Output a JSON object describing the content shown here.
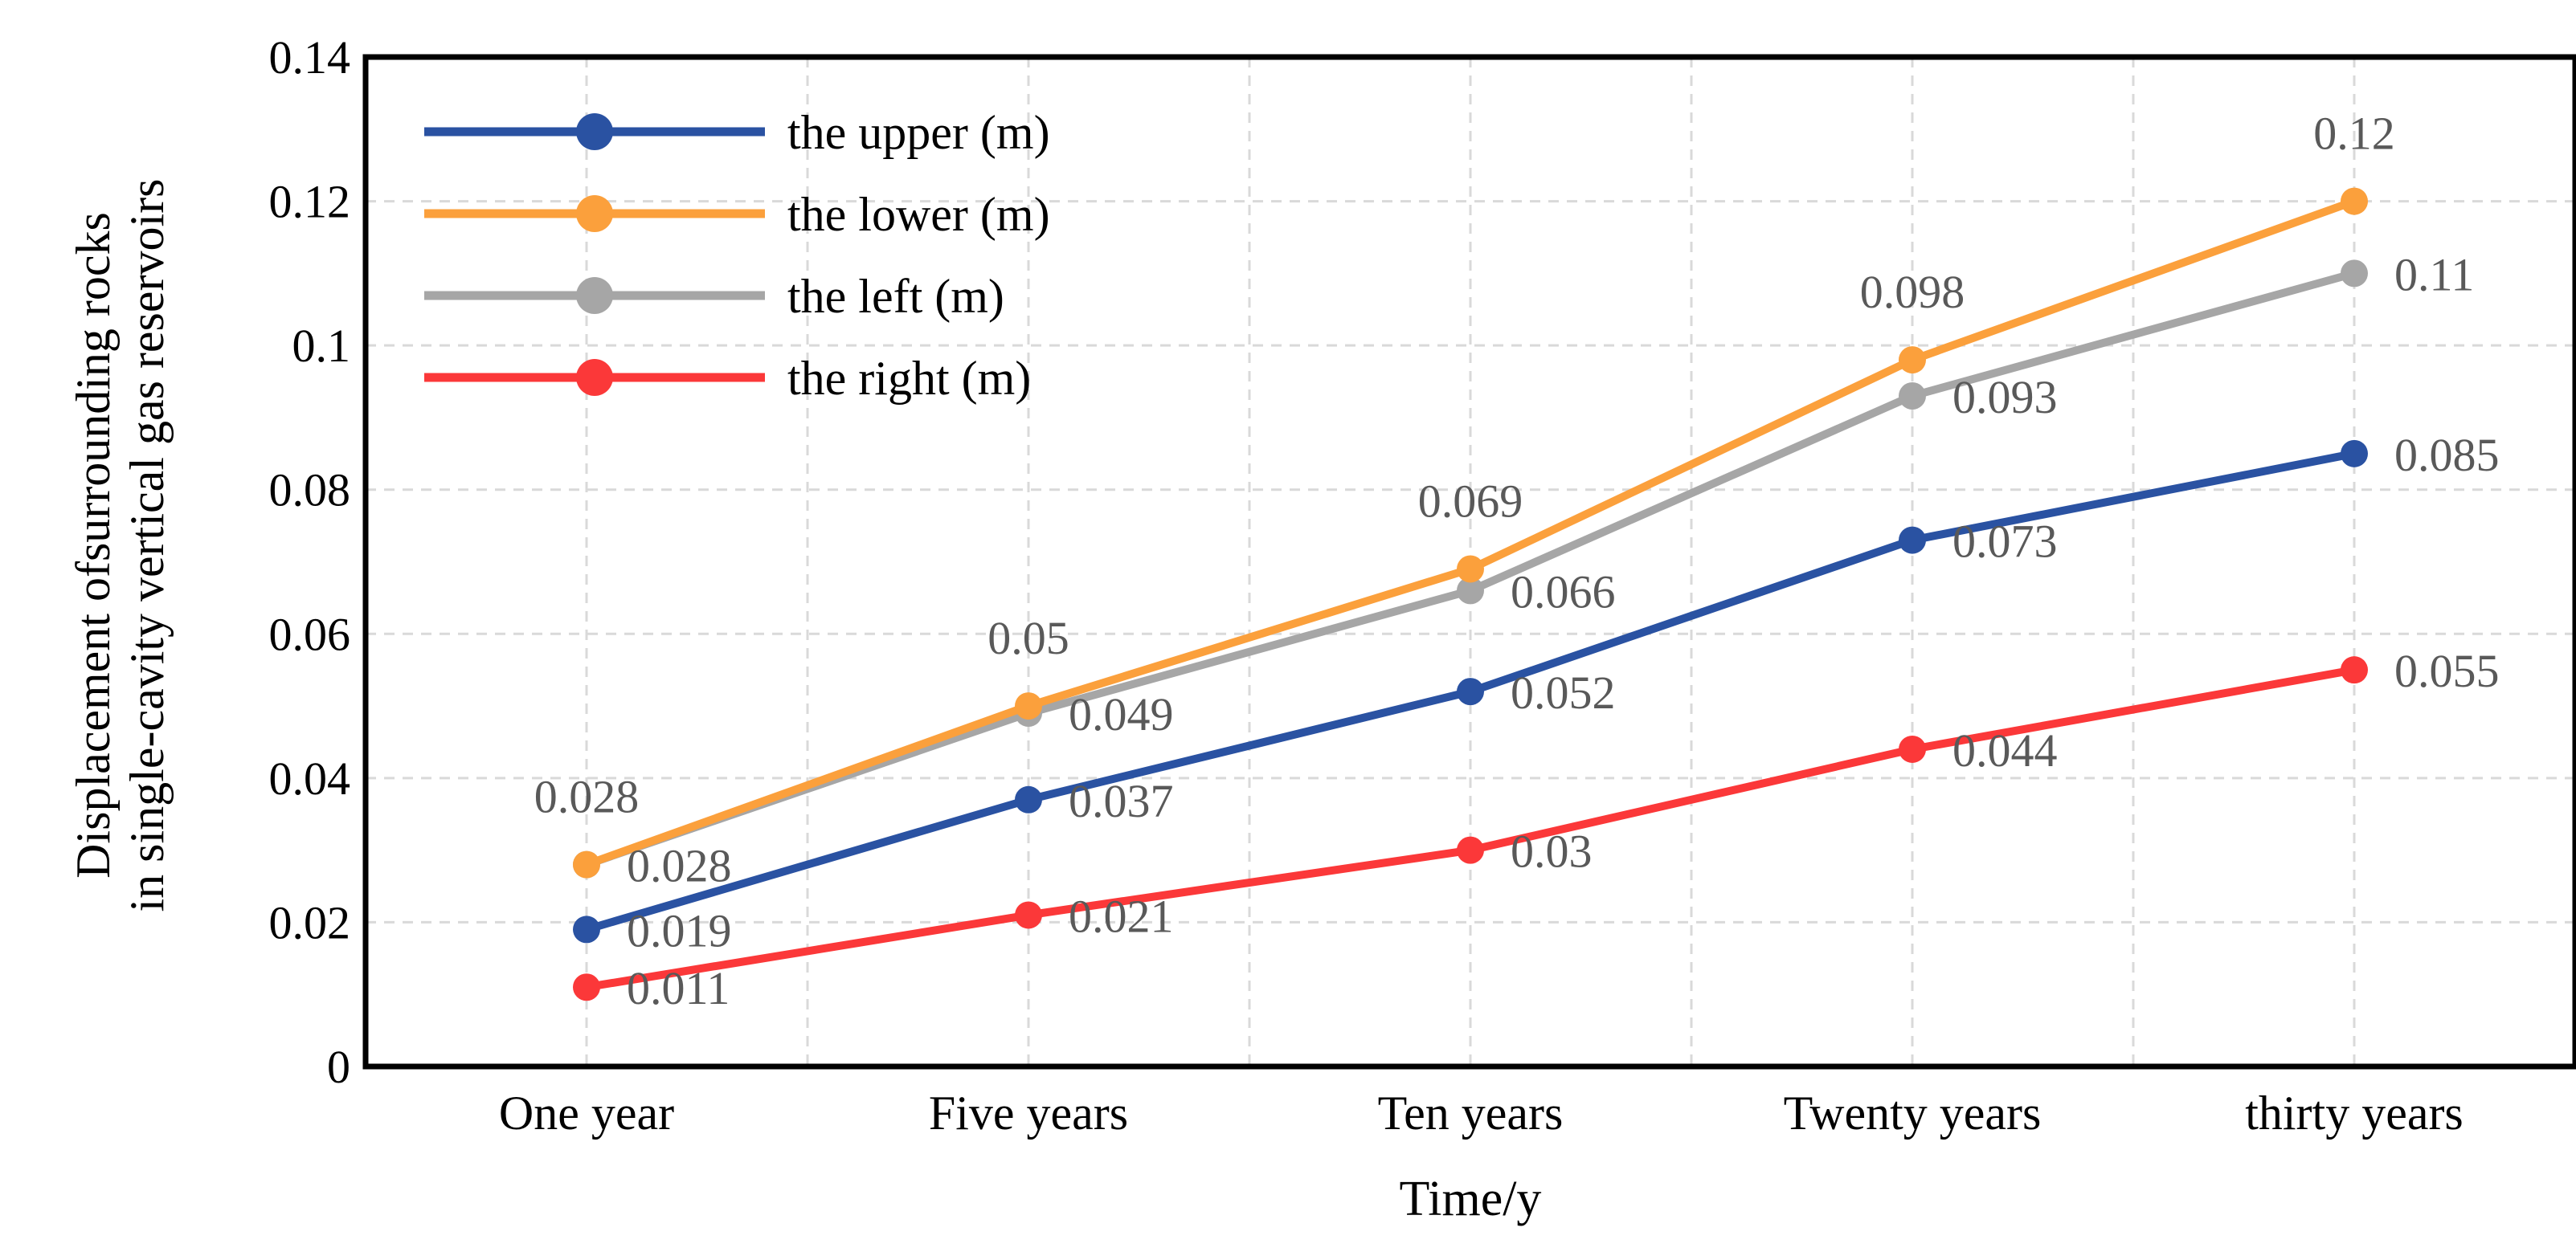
{
  "chart_data": {
    "type": "line",
    "title": "",
    "xlabel": "Time/y",
    "ylabel_lines": [
      "Displacement ofsurrounding rocks",
      "in single-cavity vertical gas reservoirs"
    ],
    "categories": [
      "One year",
      "Five years",
      "Ten years",
      "Twenty years",
      "thirty years"
    ],
    "y_ticks": [
      "0",
      "0.02",
      "0.04",
      "0.06",
      "0.08",
      "0.1",
      "0.12",
      "0.14"
    ],
    "ylim": [
      0,
      0.14
    ],
    "grid": {
      "horizontal": true,
      "vertical": true,
      "style": "dashed",
      "color": "#D9D9D9"
    },
    "axis_color": "#000000",
    "data_label_color": "#595959",
    "legend_position": "top-left-inside",
    "series": [
      {
        "name": "the upper (m)",
        "color": "#2A52A2",
        "values": [
          0.019,
          0.037,
          0.052,
          0.073,
          0.085
        ],
        "labels": [
          "0.019",
          "0.037",
          "0.052",
          "0.073",
          "0.085"
        ],
        "label_position": "right"
      },
      {
        "name": "the lower (m)",
        "color": "#FBA03C",
        "values": [
          0.028,
          0.05,
          0.069,
          0.098,
          0.12
        ],
        "labels": [
          "0.028",
          "0.05",
          "0.069",
          "0.098",
          "0.12"
        ],
        "label_position": "above"
      },
      {
        "name": "the left (m)",
        "color": "#A6A6A6",
        "values": [
          0.028,
          0.049,
          0.066,
          0.093,
          0.11
        ],
        "labels": [
          "0.028",
          "0.049",
          "0.066",
          "0.093",
          "0.11"
        ],
        "label_position": "right"
      },
      {
        "name": "the right (m)",
        "color": "#FB3839",
        "values": [
          0.011,
          0.021,
          0.03,
          0.044,
          0.055
        ],
        "labels": [
          "0.011",
          "0.021",
          "0.03",
          "0.044",
          "0.055"
        ],
        "label_position": "right"
      }
    ]
  }
}
